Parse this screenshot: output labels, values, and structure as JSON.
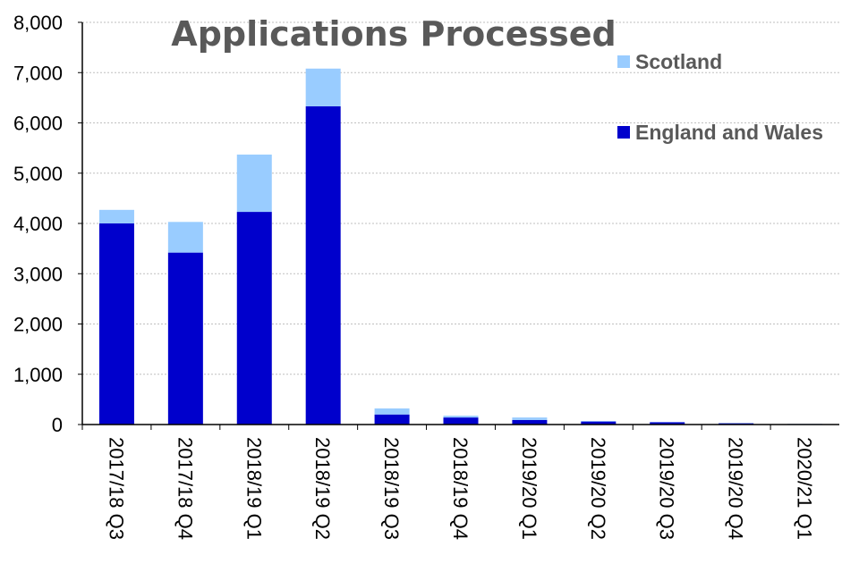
{
  "chart_data": {
    "type": "bar",
    "stacked": true,
    "title": "Applications Processed",
    "categories": [
      "2017/18 Q3",
      "2017/18 Q4",
      "2018/19 Q1",
      "2018/19 Q2",
      "2018/19 Q3",
      "2018/19 Q4",
      "2019/20 Q1",
      "2019/20 Q2",
      "2019/20 Q3",
      "2019/20 Q4",
      "2020/21 Q1"
    ],
    "series": [
      {
        "name": "England and Wales",
        "color": "#0000CC",
        "values": [
          4000,
          3420,
          4230,
          6330,
          200,
          140,
          90,
          60,
          45,
          25,
          10
        ]
      },
      {
        "name": "Scotland",
        "color": "#99CCFF",
        "values": [
          270,
          610,
          1140,
          750,
          120,
          35,
          50,
          10,
          5,
          5,
          3
        ]
      }
    ],
    "yticks": [
      "0",
      "1,000",
      "2,000",
      "3,000",
      "4,000",
      "5,000",
      "6,000",
      "7,000",
      "8,000"
    ],
    "ylim": [
      0,
      8000
    ],
    "grid": true,
    "legend": "top-right"
  }
}
